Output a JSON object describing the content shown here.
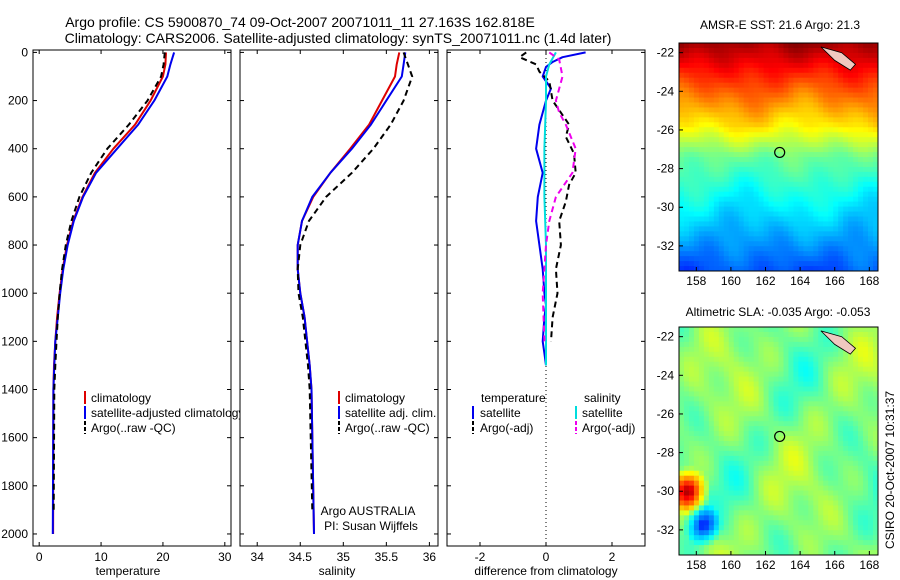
{
  "title": {
    "line1": "Argo profile: CS 5900870_74 09-Oct-2007 20071011_11 27.163S 162.818E",
    "line2": "Climatology: CARS2006. Satellite-adjusted climatology: synTS_20071011.nc (1.4d later)"
  },
  "credits": {
    "stamp": "CSIRO 20-Oct-2007 10:31:37"
  },
  "colors": {
    "climatology": "#dd0000",
    "satellite": "#0000ee",
    "argo": "#000000",
    "salinity_satellite": "#00dddd",
    "salinity_argo": "#ee00ee"
  },
  "chart_data": [
    {
      "type": "line",
      "id": "temperature",
      "xlabel": "temperature",
      "ylabel": "",
      "xlim": [
        -1,
        31
      ],
      "ylim": [
        2050,
        -10
      ],
      "xticks": [
        0,
        10,
        20,
        30
      ],
      "yticks": [
        0,
        200,
        400,
        600,
        800,
        1000,
        1200,
        1400,
        1600,
        1800,
        2000
      ],
      "legend": [
        "climatology",
        "satellite-adjusted climatology",
        "Argo(..raw -QC)"
      ],
      "series": [
        {
          "name": "climatology",
          "style": "solid",
          "color": "#dd0000",
          "x": [
            20.5,
            20.4,
            20.0,
            18.0,
            15.5,
            12.0,
            9.0,
            7.0,
            5.5,
            4.5,
            3.8,
            3.3,
            2.9,
            2.6,
            2.4,
            2.3,
            2.25
          ],
          "y": [
            0,
            50,
            100,
            200,
            300,
            400,
            500,
            600,
            700,
            800,
            900,
            1000,
            1100,
            1200,
            1300,
            1400,
            2000
          ]
        },
        {
          "name": "satellite-adjusted climatology",
          "style": "solid",
          "color": "#0000ee",
          "x": [
            21.8,
            21.2,
            20.7,
            18.6,
            16.0,
            12.6,
            9.2,
            7.1,
            5.6,
            4.6,
            3.9,
            3.4,
            3.0,
            2.6,
            2.45,
            2.3,
            2.2
          ],
          "y": [
            0,
            50,
            100,
            200,
            300,
            400,
            500,
            600,
            700,
            800,
            900,
            1000,
            1100,
            1200,
            1300,
            1400,
            2000
          ]
        },
        {
          "name": "Argo(..raw -QC)",
          "style": "dashed",
          "color": "#000000",
          "x": [
            20.3,
            20.1,
            19.7,
            17.5,
            14.5,
            11.0,
            8.4,
            6.5,
            5.2,
            4.3,
            3.7,
            3.3,
            3.0,
            2.8,
            2.6,
            2.45,
            2.35
          ],
          "y": [
            0,
            50,
            100,
            200,
            300,
            400,
            500,
            600,
            700,
            800,
            900,
            1000,
            1100,
            1200,
            1300,
            1400,
            1900
          ]
        }
      ]
    },
    {
      "type": "line",
      "id": "salinity",
      "xlabel": "salinity",
      "xlim": [
        33.8,
        36.1
      ],
      "ylim": [
        2050,
        -10
      ],
      "xticks": [
        34,
        34.5,
        35,
        35.5,
        36
      ],
      "legend": [
        "climatology",
        "satellite adj. clim.",
        "Argo(..raw -QC)"
      ],
      "annotation": [
        "Argo AUSTRALIA",
        "PI: Susan Wijffels"
      ],
      "series": [
        {
          "name": "climatology",
          "style": "solid",
          "color": "#dd0000",
          "x": [
            35.65,
            35.62,
            35.6,
            35.45,
            35.3,
            35.08,
            34.85,
            34.65,
            34.52,
            34.47,
            34.47,
            34.5,
            34.55,
            34.58,
            34.61,
            34.63,
            34.66
          ],
          "y": [
            0,
            50,
            100,
            200,
            300,
            400,
            500,
            600,
            700,
            800,
            900,
            1000,
            1100,
            1200,
            1300,
            1400,
            2000
          ]
        },
        {
          "name": "satellite adj. clim.",
          "style": "solid",
          "color": "#0000ee",
          "x": [
            35.72,
            35.7,
            35.68,
            35.5,
            35.32,
            35.1,
            34.85,
            34.64,
            34.52,
            34.47,
            34.47,
            34.5,
            34.55,
            34.58,
            34.61,
            34.63,
            34.66
          ],
          "y": [
            0,
            50,
            100,
            200,
            300,
            400,
            500,
            600,
            700,
            800,
            900,
            1000,
            1100,
            1200,
            1300,
            1400,
            2000
          ]
        },
        {
          "name": "Argo(..raw -QC)",
          "style": "dashed",
          "color": "#000000",
          "x": [
            35.7,
            35.75,
            35.8,
            35.7,
            35.55,
            35.35,
            35.1,
            34.8,
            34.6,
            34.5,
            34.47,
            34.48,
            34.53,
            34.56,
            34.59,
            34.61,
            34.64
          ],
          "y": [
            0,
            50,
            100,
            200,
            300,
            400,
            500,
            600,
            700,
            800,
            900,
            1000,
            1100,
            1200,
            1300,
            1400,
            1900
          ]
        }
      ]
    },
    {
      "type": "line",
      "id": "difference",
      "xlabel": "difference from climatology",
      "xlim": [
        -3,
        3
      ],
      "ylim": [
        2050,
        -10
      ],
      "xticks": [
        -2,
        0,
        2
      ],
      "zero_line": 0,
      "legend_headers": [
        "temperature",
        "salinity"
      ],
      "legend": [
        "satellite",
        "Argo(-adj)",
        "satellite",
        "Argo(-adj)"
      ],
      "series": [
        {
          "name": "temperature satellite",
          "style": "solid",
          "color": "#0000ee",
          "x": [
            1.2,
            0.5,
            0.2,
            0.0,
            -0.1,
            0.15,
            0.0,
            -0.2,
            -0.3,
            -0.1,
            -0.25,
            -0.3,
            -0.2,
            -0.1,
            -0.05,
            0.0,
            -0.05,
            -0.1,
            -0.05,
            0.0
          ],
          "y": [
            0,
            20,
            40,
            60,
            100,
            150,
            200,
            300,
            400,
            500,
            600,
            700,
            800,
            900,
            1000,
            1050,
            1100,
            1200,
            1250,
            1300
          ]
        },
        {
          "name": "temperature Argo(-adj)",
          "style": "dashed",
          "color": "#000000",
          "x": [
            -0.6,
            -0.8,
            -0.3,
            -0.2,
            0.1,
            0.2,
            0.7,
            0.6,
            0.85,
            0.9,
            0.7,
            0.6,
            0.4,
            0.45,
            0.3,
            0.35,
            0.2,
            0.15
          ],
          "y": [
            0,
            20,
            50,
            80,
            120,
            200,
            300,
            350,
            420,
            500,
            550,
            620,
            700,
            800,
            900,
            1000,
            1100,
            1200
          ]
        },
        {
          "name": "salinity satellite",
          "style": "solid",
          "color": "#00dddd",
          "x": [
            0.3,
            0.1,
            0.0,
            0.0,
            -0.05,
            -0.05,
            0.0,
            0.0,
            0.0,
            0.0
          ],
          "y": [
            0,
            50,
            100,
            200,
            400,
            600,
            800,
            1000,
            1200,
            1300
          ]
        },
        {
          "name": "salinity Argo(-adj)",
          "style": "dashed",
          "color": "#ee00ee",
          "x": [
            0.1,
            0.4,
            0.5,
            0.3,
            0.4,
            0.6,
            0.9,
            0.8,
            0.3,
            0.1,
            0.0,
            -0.05,
            -0.1,
            -0.05
          ],
          "y": [
            0,
            30,
            100,
            200,
            250,
            300,
            400,
            500,
            600,
            700,
            800,
            900,
            1000,
            1200
          ]
        }
      ]
    },
    {
      "type": "heatmap",
      "id": "sst_map",
      "title": "AMSR-E SST: 21.6 Argo: 21.3",
      "xlim": [
        157,
        168.5
      ],
      "ylim": [
        -33.3,
        -21.5
      ],
      "xticks": [
        158,
        160,
        162,
        164,
        166,
        168
      ],
      "yticks": [
        -22,
        -24,
        -26,
        -28,
        -30,
        -32
      ],
      "marker": {
        "lon": 162.818,
        "lat": -27.163
      },
      "land_color": "#f0c8c0"
    },
    {
      "type": "heatmap",
      "id": "sla_map",
      "title": "Altimetric SLA: -0.035 Argo: -0.053",
      "xlim": [
        157,
        168.5
      ],
      "ylim": [
        -33.3,
        -21.5
      ],
      "xticks": [
        158,
        160,
        162,
        164,
        166,
        168
      ],
      "yticks": [
        -22,
        -24,
        -26,
        -28,
        -30,
        -32
      ],
      "marker": {
        "lon": 162.818,
        "lat": -27.163
      },
      "land_color": "#f0c8c0"
    }
  ]
}
